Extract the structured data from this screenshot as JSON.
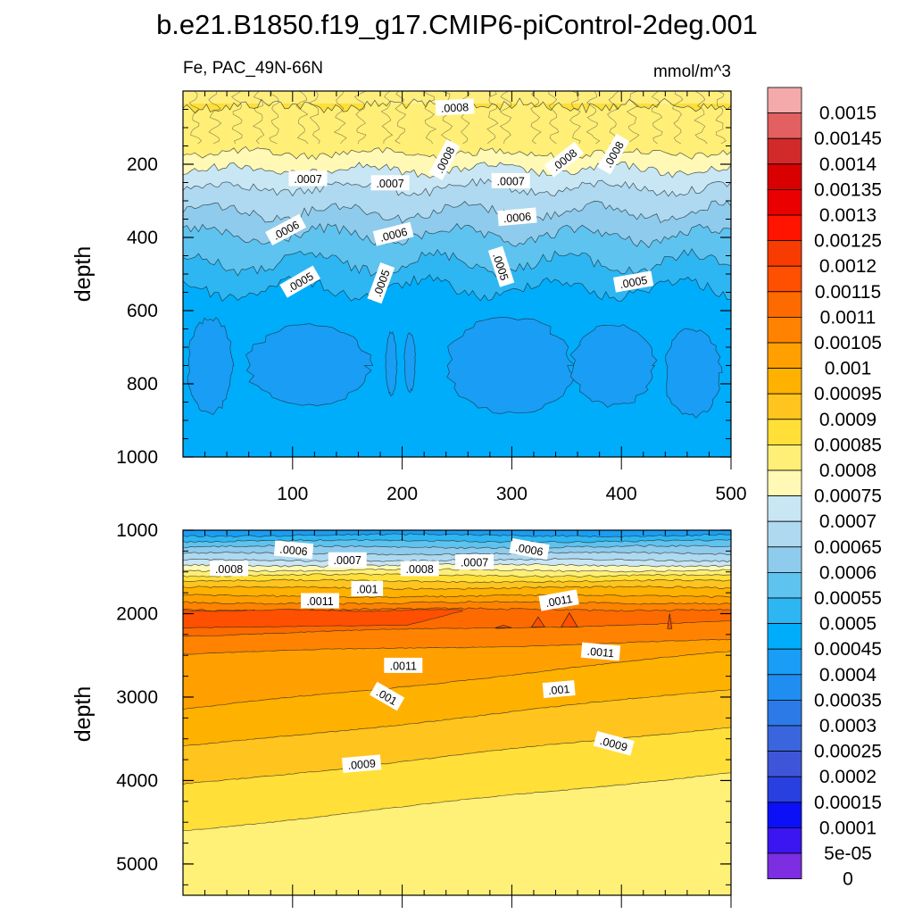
{
  "title": "b.e21.B1850.f19_g17.CMIP6-piControl-2deg.001",
  "colorbar": {
    "labels": [
      "0.0015",
      "0.00145",
      "0.0014",
      "0.00135",
      "0.0013",
      "0.00125",
      "0.0012",
      "0.00115",
      "0.0011",
      "0.00105",
      "0.001",
      "0.00095",
      "0.0009",
      "0.00085",
      "0.0008",
      "0.00075",
      "0.0007",
      "0.00065",
      "0.0006",
      "0.00055",
      "0.0005",
      "0.00045",
      "0.0004",
      "0.00035",
      "0.0003",
      "0.00025",
      "0.0002",
      "0.00015",
      "0.0001",
      "5e-05",
      "0"
    ],
    "colors": [
      "#f4a9aa",
      "#e2605f",
      "#d22a2a",
      "#d80000",
      "#ea0000",
      "#ff1400",
      "#f83b00",
      "#ff4f00",
      "#fd6a00",
      "#ff8300",
      "#ffa000",
      "#ffb100",
      "#ffc41d",
      "#ffdf38",
      "#ffef76",
      "#fff9b5",
      "#c8e6f4",
      "#aed9f0",
      "#8ecbec",
      "#5ec3ef",
      "#2db6f2",
      "#00adfa",
      "#199df5",
      "#1f8ef0",
      "#2c79e8",
      "#3a66dd",
      "#3f55d9",
      "#2840e0",
      "#0c10f7",
      "#3b16f0",
      "#7c2ee0"
    ]
  },
  "chart_data": [
    {
      "type": "heatmap",
      "subtitle_left": "Fe, PAC_49N-66N",
      "subtitle_right": "mmol/m^3",
      "ylabel": "depth",
      "y_reversed": true,
      "xlim": [
        0,
        500
      ],
      "ylim": [
        0,
        1000
      ],
      "xticks": [
        100,
        200,
        300,
        400,
        500
      ],
      "yticks": [
        200,
        400,
        600,
        800,
        1000
      ],
      "contour_labels": [
        {
          "text": ".0008",
          "x": 248,
          "y": 45,
          "angle": -3
        },
        {
          "text": ".0008",
          "x": 239,
          "y": 188,
          "angle": -62
        },
        {
          "text": ".0008",
          "x": 348,
          "y": 188,
          "angle": -38
        },
        {
          "text": ".0008",
          "x": 393,
          "y": 173,
          "angle": -60
        },
        {
          "text": ".0007",
          "x": 114,
          "y": 240,
          "angle": 0
        },
        {
          "text": ".0007",
          "x": 189,
          "y": 252,
          "angle": 0
        },
        {
          "text": ".0007",
          "x": 299,
          "y": 246,
          "angle": 0
        },
        {
          "text": ".0006",
          "x": 94,
          "y": 380,
          "angle": -28
        },
        {
          "text": ".0006",
          "x": 192,
          "y": 392,
          "angle": -14
        },
        {
          "text": ".0006",
          "x": 305,
          "y": 345,
          "angle": -5
        },
        {
          "text": ".0005",
          "x": 107,
          "y": 522,
          "angle": -30
        },
        {
          "text": ".0005",
          "x": 181,
          "y": 525,
          "angle": -70
        },
        {
          "text": ".0005",
          "x": 290,
          "y": 480,
          "angle": 72
        },
        {
          "text": ".0005",
          "x": 411,
          "y": 522,
          "angle": -10
        }
      ]
    },
    {
      "type": "heatmap",
      "ylabel": "depth",
      "y_reversed": true,
      "xlim": [
        0,
        500
      ],
      "ylim": [
        1000,
        5375
      ],
      "yticks": [
        1000,
        2000,
        3000,
        4000,
        5000
      ],
      "contour_labels": [
        {
          "text": ".0006",
          "x": 101,
          "y": 1240,
          "angle": 5
        },
        {
          "text": ".0006",
          "x": 316,
          "y": 1230,
          "angle": 10
        },
        {
          "text": ".0007",
          "x": 150,
          "y": 1360,
          "angle": 0
        },
        {
          "text": ".0007",
          "x": 266,
          "y": 1385,
          "angle": 0
        },
        {
          "text": ".0008",
          "x": 42,
          "y": 1465,
          "angle": 0
        },
        {
          "text": ".0008",
          "x": 216,
          "y": 1465,
          "angle": 0
        },
        {
          "text": ".001",
          "x": 168,
          "y": 1705,
          "angle": 0
        },
        {
          "text": ".0011",
          "x": 125,
          "y": 1850,
          "angle": 0
        },
        {
          "text": ".0011",
          "x": 343,
          "y": 1845,
          "angle": -10
        },
        {
          "text": ".0011",
          "x": 381,
          "y": 2460,
          "angle": 5
        },
        {
          "text": ".0011",
          "x": 201,
          "y": 2625,
          "angle": 0
        },
        {
          "text": ".001",
          "x": 186,
          "y": 2995,
          "angle": 30
        },
        {
          "text": ".001",
          "x": 343,
          "y": 2910,
          "angle": -5
        },
        {
          "text": ".0009",
          "x": 163,
          "y": 3805,
          "angle": -5
        },
        {
          "text": ".0009",
          "x": 393,
          "y": 3560,
          "angle": 15
        }
      ]
    }
  ]
}
